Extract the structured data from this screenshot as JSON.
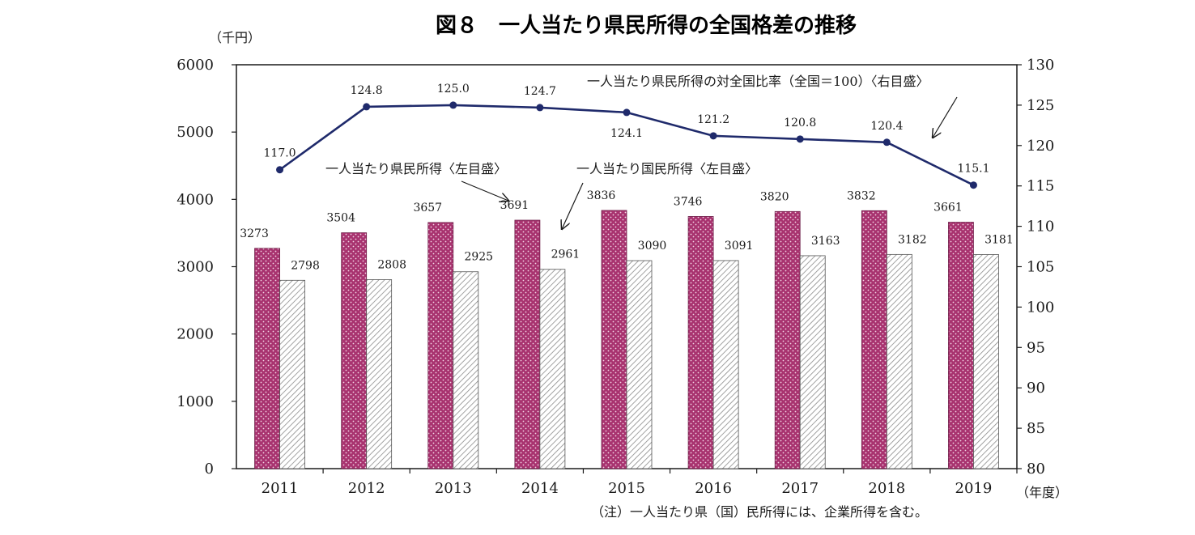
{
  "chart_data": {
    "type": "bar",
    "title": "図８　一人当たり県民所得の全国格差の推移",
    "categories": [
      "2011",
      "2012",
      "2013",
      "2014",
      "2015",
      "2016",
      "2017",
      "2018",
      "2019"
    ],
    "xlabel": "（年度）",
    "ylabel": "（千円）",
    "ylim": [
      0,
      6000
    ],
    "y_ticks": [
      "0",
      "1000",
      "2000",
      "3000",
      "4000",
      "5000",
      "6000"
    ],
    "y2lim": [
      80,
      130
    ],
    "y2_ticks": [
      "80",
      "85",
      "90",
      "95",
      "100",
      "105",
      "110",
      "115",
      "120",
      "125",
      "130"
    ],
    "series": [
      {
        "name": "一人当たり県民所得〈左目盛〉",
        "type": "bar",
        "axis": "left",
        "color": "#a8336f",
        "values": [
          3273,
          3504,
          3657,
          3691,
          3836,
          3746,
          3820,
          3832,
          3661
        ],
        "labels": [
          "3273",
          "3504",
          "3657",
          "3691",
          "3836",
          "3746",
          "3820",
          "3832",
          "3661"
        ]
      },
      {
        "name": "一人当たり国民所得〈左目盛〉",
        "type": "bar",
        "axis": "left",
        "color": "#d9d9d9",
        "values": [
          2798,
          2808,
          2925,
          2961,
          3090,
          3091,
          3163,
          3182,
          3181
        ],
        "labels": [
          "2798",
          "2808",
          "2925",
          "2961",
          "3090",
          "3091",
          "3163",
          "3182",
          "3181"
        ]
      },
      {
        "name": "一人当たり県民所得の対全国比率（全国＝100）〈右目盛〉",
        "type": "line",
        "axis": "right",
        "color": "#1f2a6b",
        "values": [
          117.0,
          124.8,
          125.0,
          124.7,
          124.1,
          121.2,
          120.8,
          120.4,
          115.1
        ],
        "labels": [
          "117.0",
          "124.8",
          "125.0",
          "124.7",
          "124.1",
          "121.2",
          "120.8",
          "120.4",
          "115.1"
        ]
      }
    ],
    "note": "（注）一人当たり県（国）民所得には、企業所得を含む。",
    "grid": false
  }
}
